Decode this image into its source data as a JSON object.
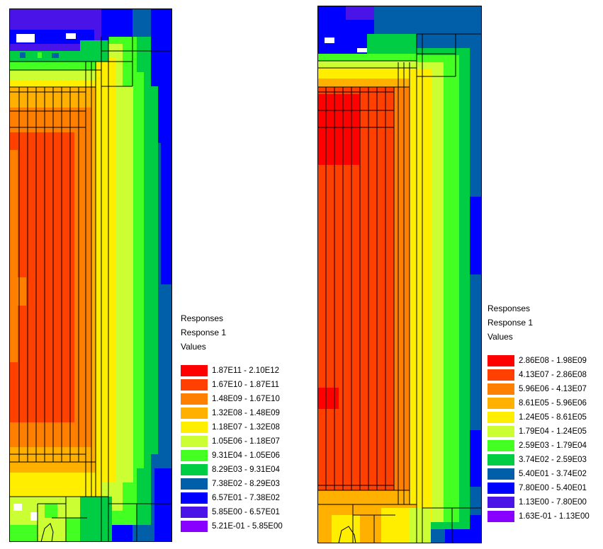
{
  "panels": [
    {
      "legend": {
        "title": "Responses",
        "subtitle": "Response 1",
        "values_label": "Values",
        "entries": [
          {
            "range": "1.87E11 - 2.10E12",
            "color": "#ff0000"
          },
          {
            "range": "1.67E10 - 1.87E11",
            "color": "#ff4000"
          },
          {
            "range": "1.48E09 - 1.67E10",
            "color": "#ff8000"
          },
          {
            "range": "1.32E08 - 1.48E09",
            "color": "#ffb000"
          },
          {
            "range": "1.18E07 - 1.32E08",
            "color": "#ffee00"
          },
          {
            "range": "1.05E06 - 1.18E07",
            "color": "#ccff33"
          },
          {
            "range": "9.31E04 - 1.05E06",
            "color": "#44ff22"
          },
          {
            "range": "8.29E03 - 9.31E04",
            "color": "#00cc44"
          },
          {
            "range": "7.38E02 - 8.29E03",
            "color": "#005fa8"
          },
          {
            "range": "6.57E01 - 7.38E02",
            "color": "#0000ff"
          },
          {
            "range": "5.85E00 - 6.57E01",
            "color": "#4a14e8"
          },
          {
            "range": "5.21E-01 - 5.85E00",
            "color": "#8800ff"
          }
        ]
      }
    },
    {
      "legend": {
        "title": "Responses",
        "subtitle": "Response 1",
        "values_label": "Values",
        "entries": [
          {
            "range": "2.86E08 - 1.98E09",
            "color": "#ff0000"
          },
          {
            "range": "4.13E07 - 2.86E08",
            "color": "#ff4000"
          },
          {
            "range": "5.96E06 - 4.13E07",
            "color": "#ff8000"
          },
          {
            "range": "8.61E05 - 5.96E06",
            "color": "#ffb000"
          },
          {
            "range": "1.24E05 - 8.61E05",
            "color": "#ffee00"
          },
          {
            "range": "1.79E04 - 1.24E05",
            "color": "#ccff33"
          },
          {
            "range": "2.59E03 - 1.79E04",
            "color": "#44ff22"
          },
          {
            "range": "3.74E02 - 2.59E03",
            "color": "#00cc44"
          },
          {
            "range": "5.40E01 - 3.74E02",
            "color": "#005fa8"
          },
          {
            "range": "7.80E00 - 5.40E01",
            "color": "#0000ff"
          },
          {
            "range": "1.13E00 - 7.80E00",
            "color": "#4a14e8"
          },
          {
            "range": "1.63E-01 - 1.13E00",
            "color": "#8800ff"
          }
        ]
      }
    }
  ]
}
